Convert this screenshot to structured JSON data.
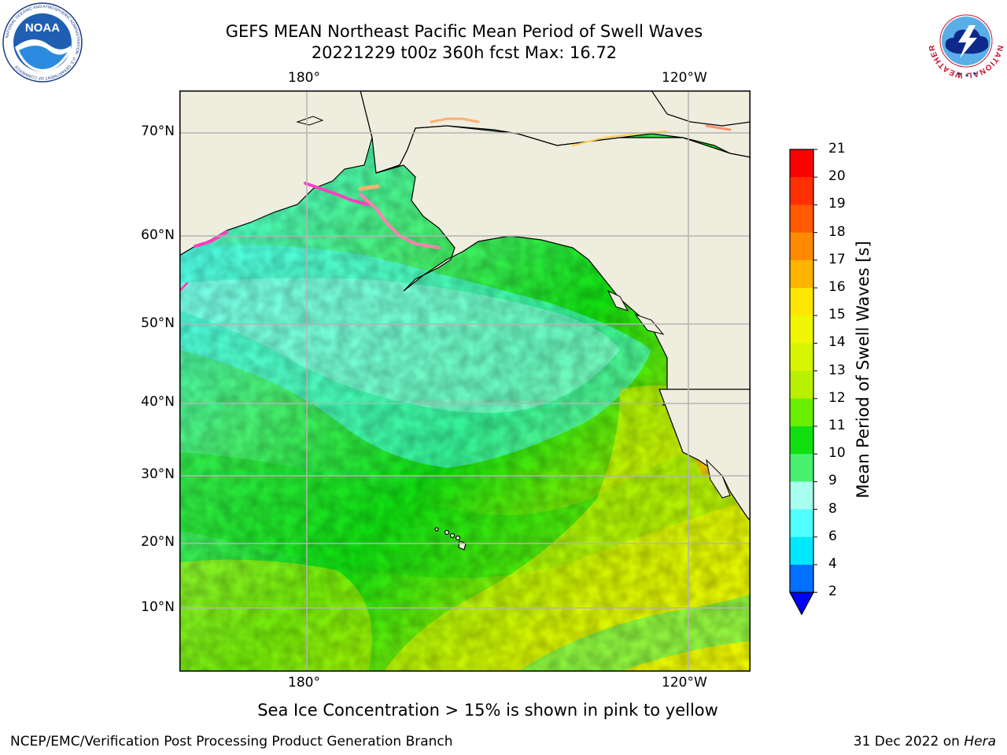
{
  "header": {
    "title_line1": "GEFS MEAN Northeast Pacific Mean Period of Swell Waves",
    "title_line2": "20221229 t00z 360h fcst   Max: 16.72"
  },
  "map": {
    "lon_labels": [
      "180°",
      "120°W"
    ],
    "lat_labels": [
      "70°N",
      "60°N",
      "50°N",
      "40°N",
      "30°N",
      "20°N",
      "10°N"
    ]
  },
  "colorbar": {
    "label": "Mean Period of Swell Waves [s]",
    "ticks": [
      "21",
      "20",
      "19",
      "18",
      "17",
      "16",
      "15",
      "14",
      "13",
      "12",
      "11",
      "10",
      "9",
      "8",
      "6",
      "4",
      "2"
    ],
    "colors": [
      "#ff0000",
      "#ff3000",
      "#ff5a00",
      "#ff8a00",
      "#ffb400",
      "#ffe600",
      "#f0f500",
      "#d8f500",
      "#b8f000",
      "#6aef00",
      "#10e010",
      "#48f070",
      "#a8fff0",
      "#50ffff",
      "#00e8ff",
      "#0070ff"
    ],
    "extend_color": "#0000ff"
  },
  "note": "Sea Ice Concentration > 15% is shown in pink to yellow",
  "footer": {
    "left": "NCEP/EMC/Verification Post Processing Product Generation Branch",
    "right_prefix": "31 Dec 2022 on ",
    "right_machine": "Hera"
  },
  "logos": {
    "noaa": "NOAA",
    "noaa_ring": "NATIONAL OCEANIC AND ATMOSPHERIC ADMINISTRATION · U.S. DEPARTMENT OF COMMERCE",
    "nws_ring": "NATIONAL WEATHER SERVICE"
  },
  "colors": {
    "land": "#efedde",
    "grid": "#b4b4b4"
  }
}
